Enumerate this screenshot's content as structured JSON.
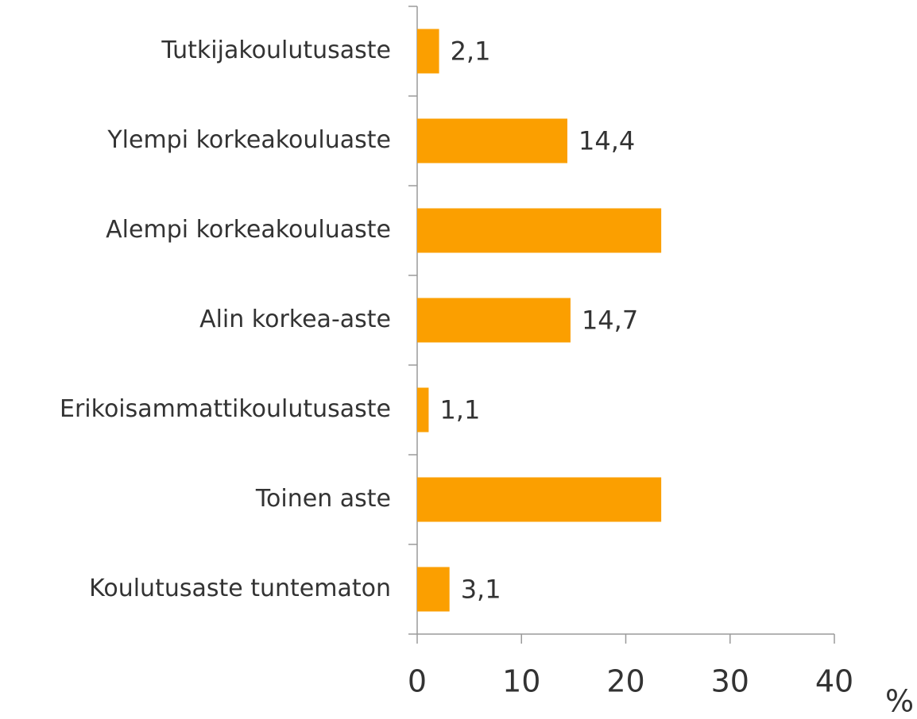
{
  "chart_data": {
    "type": "barh",
    "categories": [
      "Tutkijakoulutusaste",
      "Ylempi korkeakouluaste",
      "Alempi korkeakouluaste",
      "Alin korkea-aste",
      "Erikoisammattikoulutusaste",
      "Toinen aste",
      "Koulutusaste tuntematon"
    ],
    "values": [
      2.1,
      14.4,
      23.4,
      14.7,
      1.1,
      23.4,
      3.1
    ],
    "value_labels": [
      "2,1",
      "14,4",
      null,
      "14,7",
      "1,1",
      null,
      "3,1"
    ],
    "color": "#fb9f00",
    "xlabel": "%",
    "xlim": [
      0,
      40
    ],
    "xticks": [
      0,
      10,
      20,
      30,
      40
    ]
  }
}
